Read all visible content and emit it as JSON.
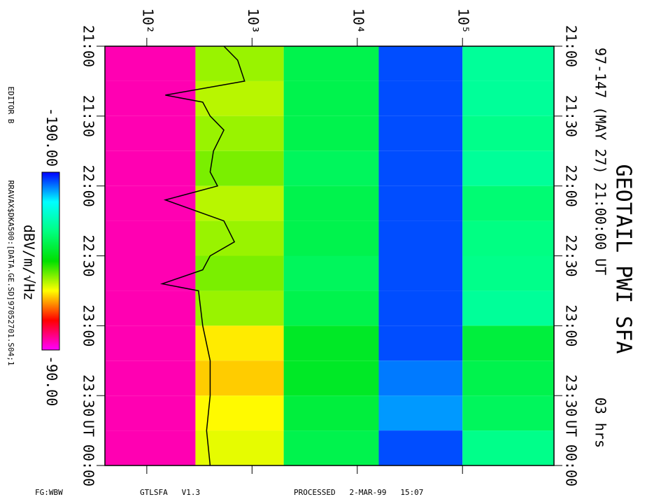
{
  "chart_data": {
    "type": "spectrogram",
    "title": "GEOTAIL PWI SFA",
    "subtitle": "97-147 (MAY 27) 21:00:00 UT",
    "duration": "03 hrs",
    "ut_label": "UT",
    "editor": "EDITOR B",
    "file": "RRAVAX$DKA500:[DATA.GE.SD]97052701.S04;1",
    "footer": [
      "FG:WBW",
      "GTLSFA   V1.3",
      "PROCESSED   2-MAR-99   15:07"
    ],
    "xscale": "log",
    "xlim": [
      40,
      740000
    ],
    "xticks": [
      {
        "value": 100,
        "label": "10²"
      },
      {
        "value": 1000,
        "label": "10³"
      },
      {
        "value": 10000,
        "label": "10⁴"
      },
      {
        "value": 100000,
        "label": "10⁵"
      }
    ],
    "ylim": [
      0,
      3
    ],
    "yticks": [
      {
        "value": 0,
        "label": "21:00"
      },
      {
        "value": 0.5,
        "label": "21:30"
      },
      {
        "value": 1,
        "label": "22:00"
      },
      {
        "value": 1.5,
        "label": "22:30"
      },
      {
        "value": 2,
        "label": "23:00"
      },
      {
        "value": 2.5,
        "label": "23:30"
      },
      {
        "value": 3,
        "label": "00:00"
      }
    ],
    "xbins": [
      40,
      290,
      2000,
      16000,
      100000,
      740000
    ],
    "ybins": [
      0,
      0.25,
      0.5,
      0.75,
      1,
      1.25,
      1.5,
      1.75,
      2,
      2.25,
      2.5,
      2.75,
      3
    ],
    "z": [
      [
        -95,
        -130,
        -150,
        -185,
        -160
      ],
      [
        -95,
        -128,
        -150,
        -185,
        -160
      ],
      [
        -95,
        -130,
        -150,
        -185,
        -158
      ],
      [
        -95,
        -132,
        -152,
        -185,
        -160
      ],
      [
        -95,
        -128,
        -150,
        -185,
        -155
      ],
      [
        -95,
        -130,
        -150,
        -185,
        -157
      ],
      [
        -95,
        -132,
        -152,
        -185,
        -158
      ],
      [
        -95,
        -130,
        -150,
        -185,
        -160
      ],
      [
        -95,
        -122,
        -145,
        -185,
        -148
      ],
      [
        -95,
        -120,
        -145,
        -182,
        -150
      ],
      [
        -95,
        -123,
        -148,
        -180,
        -152
      ],
      [
        -95,
        -125,
        -150,
        -185,
        -158
      ]
    ],
    "zlim": [
      -190,
      -90
    ],
    "zticks": [
      {
        "value": -190,
        "label": "-190.00"
      },
      {
        "value": -90,
        "label": "-90.00"
      }
    ],
    "zlabel": "dBV/m/√Hz",
    "colormap": [
      "#0000ff",
      "#00ffff",
      "#00ff80",
      "#00e000",
      "#ffff00",
      "#ff0000",
      "#ff00ff"
    ],
    "line": {
      "color": "#000000",
      "y": [
        0,
        0.1,
        0.25,
        0.35,
        0.4,
        0.5,
        0.6,
        0.75,
        0.9,
        1,
        1.1,
        1.25,
        1.4,
        1.5,
        1.6,
        1.7,
        1.75,
        2,
        2.25,
        2.5,
        2.75,
        3
      ],
      "values": [
        540,
        730,
        850,
        150,
        340,
        400,
        540,
        430,
        400,
        470,
        150,
        540,
        680,
        400,
        340,
        140,
        310,
        340,
        400,
        400,
        370,
        400
      ]
    }
  }
}
